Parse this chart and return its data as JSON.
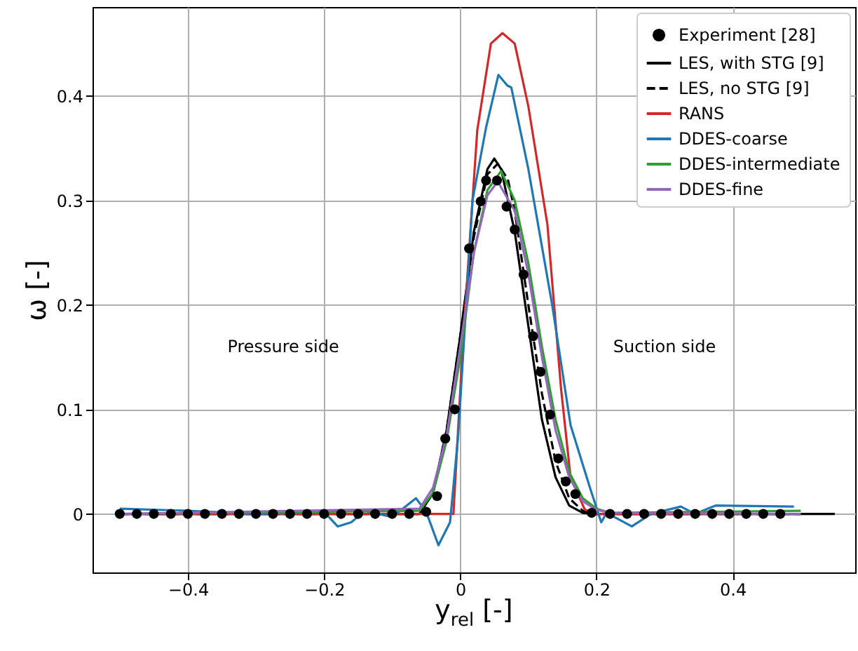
{
  "chart_data": {
    "type": "line",
    "xlabel": "y$_{rel}$ [-]",
    "ylabel": "ω [-]",
    "xlim": [
      -0.54,
      0.58
    ],
    "ylim": [
      -0.056,
      0.485
    ],
    "xticks": [
      {
        "value": -0.4,
        "label": "−0.4"
      },
      {
        "value": -0.2,
        "label": "−0.2"
      },
      0.0,
      0.2,
      0.4
    ],
    "yticks": [
      0.0,
      0.1,
      0.2,
      0.3,
      0.4
    ],
    "grid": true,
    "legend": "top right",
    "annotations": [
      "Pressure side",
      "Suction side"
    ],
    "series": [
      {
        "name": "Experiment [28]",
        "type": "scatter",
        "marker": "circle",
        "color": "#000000",
        "x": [
          -0.5,
          -0.475,
          -0.45,
          -0.425,
          -0.4,
          -0.375,
          -0.35,
          -0.325,
          -0.3,
          -0.275,
          -0.25,
          -0.225,
          -0.2,
          -0.175,
          -0.15,
          -0.125,
          -0.1,
          -0.075,
          -0.05,
          -0.034,
          -0.022,
          -0.008,
          0.013,
          0.03,
          0.038,
          0.054,
          0.068,
          0.08,
          0.093,
          0.107,
          0.118,
          0.132,
          0.144,
          0.155,
          0.169,
          0.193,
          0.22,
          0.245,
          0.27,
          0.295,
          0.32,
          0.345,
          0.37,
          0.395,
          0.42,
          0.445,
          0.47
        ],
        "values": [
          0,
          0,
          0,
          0,
          0,
          0,
          0,
          0,
          0,
          0,
          0,
          0,
          0,
          0,
          0,
          0,
          0,
          0,
          0.002,
          0.017,
          0.072,
          0.1,
          0.254,
          0.299,
          0.319,
          0.319,
          0.294,
          0.272,
          0.229,
          0.17,
          0.136,
          0.095,
          0.053,
          0.031,
          0.019,
          0.001,
          0,
          0,
          0,
          0,
          0,
          0,
          0,
          0,
          0,
          0,
          0
        ]
      },
      {
        "name": "LES, with STG [9]",
        "line_style": "solid",
        "color": "#000000",
        "x": [
          -0.5,
          -0.06,
          -0.04,
          -0.02,
          0,
          0.02,
          0.04,
          0.05,
          0.06,
          0.08,
          0.1,
          0.12,
          0.14,
          0.16,
          0.18,
          0.2,
          0.55
        ],
        "values": [
          0,
          0,
          0.02,
          0.08,
          0.17,
          0.27,
          0.33,
          0.34,
          0.33,
          0.27,
          0.18,
          0.09,
          0.035,
          0.008,
          0.001,
          0,
          0
        ]
      },
      {
        "name": "LES, no STG [9]",
        "line_style": "dashed",
        "color": "#000000",
        "x": [
          -0.5,
          -0.06,
          -0.04,
          -0.02,
          0,
          0.02,
          0.04,
          0.055,
          0.07,
          0.08,
          0.1,
          0.12,
          0.14,
          0.16,
          0.18,
          0.2,
          0.5
        ],
        "values": [
          0,
          0,
          0.02,
          0.08,
          0.17,
          0.265,
          0.325,
          0.335,
          0.32,
          0.29,
          0.2,
          0.115,
          0.05,
          0.015,
          0.003,
          0,
          0
        ]
      },
      {
        "name": "RANS",
        "line_style": "solid",
        "color": "#d62728",
        "x": [
          -0.5,
          -0.01,
          0.004,
          0.025,
          0.045,
          0.062,
          0.08,
          0.1,
          0.128,
          0.148,
          0.162,
          0.183,
          0.2,
          0.5
        ],
        "values": [
          0,
          0,
          0.165,
          0.367,
          0.45,
          0.46,
          0.45,
          0.39,
          0.277,
          0.12,
          0.035,
          0.004,
          0,
          0
        ]
      },
      {
        "name": "DDES-coarse",
        "line_style": "solid",
        "color": "#1f77b4",
        "x": [
          -0.5,
          -0.4,
          -0.3,
          -0.2,
          -0.18,
          -0.16,
          -0.14,
          -0.12,
          -0.1,
          -0.065,
          -0.05,
          -0.032,
          -0.015,
          -0.003,
          0.018,
          0.038,
          0.056,
          0.069,
          0.075,
          0.1,
          0.135,
          0.162,
          0.19,
          0.207,
          0.215,
          0.252,
          0.28,
          0.324,
          0.345,
          0.375,
          0.49
        ],
        "values": [
          0.005,
          0.003,
          0,
          0.002,
          -0.012,
          -0.008,
          0.003,
          0,
          -0.003,
          0.015,
          0.002,
          -0.03,
          -0.008,
          0.075,
          0.3,
          0.37,
          0.42,
          0.41,
          0.408,
          0.33,
          0.2,
          0.085,
          0.026,
          -0.008,
          0.001,
          -0.012,
          0,
          0.007,
          0,
          0.008,
          0.007
        ]
      },
      {
        "name": "DDES-intermediate",
        "line_style": "solid",
        "color": "#2ca02c",
        "x": [
          -0.5,
          -0.06,
          -0.04,
          -0.02,
          0,
          0.02,
          0.04,
          0.06,
          0.08,
          0.1,
          0.12,
          0.14,
          0.16,
          0.18,
          0.2,
          0.22,
          0.5
        ],
        "values": [
          0,
          0.003,
          0.02,
          0.07,
          0.15,
          0.25,
          0.31,
          0.328,
          0.3,
          0.24,
          0.16,
          0.09,
          0.04,
          0.015,
          0.005,
          0.001,
          0.003
        ]
      },
      {
        "name": "DDES-fine",
        "line_style": "solid",
        "color": "#9467bd",
        "x": [
          -0.5,
          -0.06,
          -0.04,
          -0.02,
          0,
          0.02,
          0.04,
          0.055,
          0.08,
          0.1,
          0.12,
          0.14,
          0.16,
          0.18,
          0.2,
          0.22,
          0.5
        ],
        "values": [
          0,
          0.005,
          0.025,
          0.075,
          0.16,
          0.25,
          0.305,
          0.318,
          0.29,
          0.23,
          0.15,
          0.08,
          0.035,
          0.012,
          0.004,
          0.001,
          0
        ]
      }
    ]
  }
}
